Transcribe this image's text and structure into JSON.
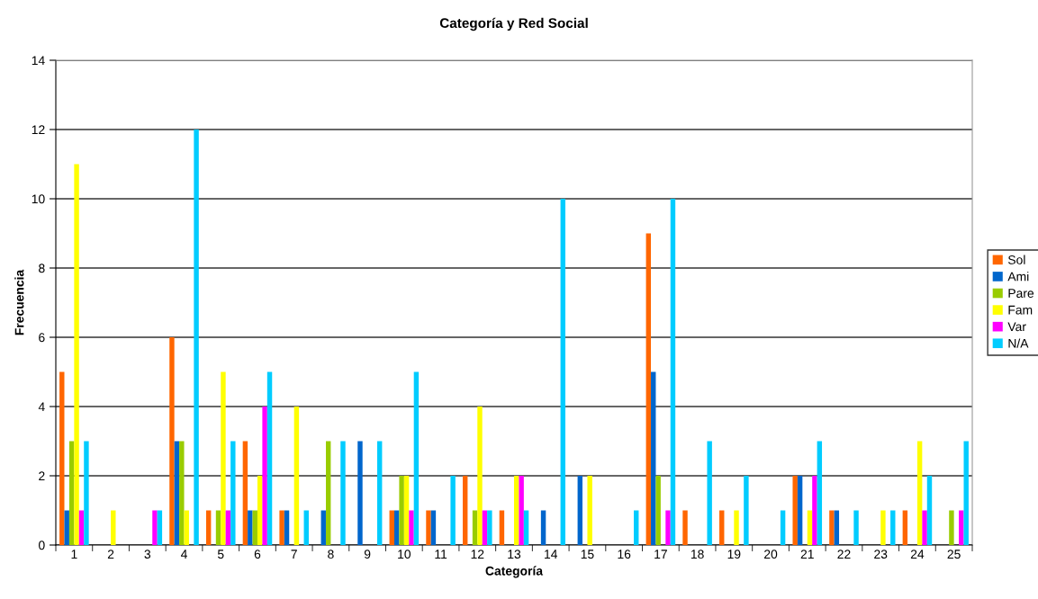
{
  "chart_data": {
    "type": "bar",
    "title": "Categoría y Red Social",
    "xlabel": "Categoría",
    "ylabel": "Frecuencia",
    "categories": [
      "1",
      "2",
      "3",
      "4",
      "5",
      "6",
      "7",
      "8",
      "9",
      "10",
      "11",
      "12",
      "13",
      "14",
      "15",
      "16",
      "17",
      "18",
      "19",
      "20",
      "21",
      "22",
      "23",
      "24",
      "25"
    ],
    "series": [
      {
        "name": "Sol",
        "color": "#ff6600",
        "values": [
          5,
          0,
          0,
          6,
          1,
          3,
          1,
          0,
          0,
          1,
          1,
          2,
          1,
          0,
          0,
          0,
          9,
          1,
          1,
          0,
          2,
          1,
          0,
          1,
          0
        ]
      },
      {
        "name": "Ami",
        "color": "#0066cc",
        "values": [
          1,
          0,
          0,
          3,
          0,
          1,
          1,
          1,
          3,
          1,
          1,
          0,
          0,
          1,
          2,
          0,
          5,
          0,
          0,
          0,
          2,
          1,
          0,
          0,
          0
        ]
      },
      {
        "name": "Pare",
        "color": "#99cc00",
        "values": [
          3,
          0,
          0,
          3,
          1,
          1,
          0,
          3,
          0,
          2,
          0,
          1,
          0,
          0,
          0,
          0,
          2,
          0,
          0,
          0,
          0,
          0,
          0,
          0,
          1
        ]
      },
      {
        "name": "Fam",
        "color": "#ffff00",
        "values": [
          11,
          1,
          0,
          1,
          5,
          2,
          4,
          0,
          0,
          2,
          0,
          4,
          2,
          0,
          2,
          0,
          0,
          0,
          1,
          0,
          1,
          0,
          1,
          3,
          0
        ]
      },
      {
        "name": "Var",
        "color": "#ff00ff",
        "values": [
          1,
          0,
          1,
          0,
          1,
          4,
          0,
          0,
          0,
          1,
          0,
          1,
          2,
          0,
          0,
          0,
          1,
          0,
          0,
          0,
          2,
          0,
          0,
          1,
          1
        ]
      },
      {
        "name": "N/A",
        "color": "#00ccff",
        "values": [
          3,
          0,
          1,
          12,
          3,
          5,
          1,
          3,
          3,
          5,
          2,
          1,
          1,
          10,
          0,
          1,
          10,
          3,
          2,
          1,
          3,
          1,
          1,
          2,
          3
        ]
      }
    ],
    "ylim": [
      0,
      14
    ],
    "yticks": [
      0,
      2,
      4,
      6,
      8,
      10,
      12,
      14
    ],
    "grid": "y",
    "legend": "right"
  }
}
